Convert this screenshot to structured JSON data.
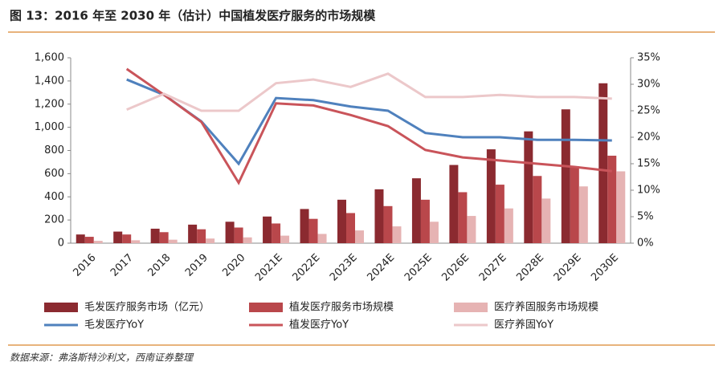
{
  "chart_data": {
    "type": "bar_line",
    "title": "图 13：2016 年至 2030 年（估计）中国植发医疗服务的市场规模",
    "source": "数据来源：弗洛斯特沙利文，西南证券整理",
    "categories": [
      "2016",
      "2017",
      "2018",
      "2019",
      "2020",
      "2021E",
      "2022E",
      "2023E",
      "2024E",
      "2025E",
      "2026E",
      "2027E",
      "2028E",
      "2029E",
      "2030E"
    ],
    "series": [
      {
        "name": "毛发医疗服务市场（亿元）",
        "type": "bar",
        "color": "#8b2a30",
        "values": [
          75,
          100,
          125,
          160,
          185,
          230,
          295,
          375,
          465,
          560,
          675,
          810,
          965,
          1155,
          1380
        ]
      },
      {
        "name": "植发医疗服务市场规模",
        "type": "bar",
        "color": "#b9474b",
        "values": [
          55,
          75,
          95,
          120,
          135,
          170,
          210,
          260,
          320,
          375,
          440,
          505,
          580,
          665,
          755
        ]
      },
      {
        "name": "医疗养固服务市场规模",
        "type": "bar",
        "color": "#e6b3b3",
        "values": [
          20,
          25,
          30,
          40,
          50,
          65,
          80,
          110,
          145,
          185,
          235,
          300,
          385,
          490,
          620
        ]
      },
      {
        "name": "毛发医疗YoY",
        "type": "line",
        "axis": "y2",
        "color": "#4f81bd",
        "values": [
          null,
          30.9,
          28,
          23,
          15,
          27.4,
          27,
          25.8,
          25,
          20.8,
          20,
          20,
          19.5,
          19.5,
          19.4
        ]
      },
      {
        "name": "植发医疗YoY",
        "type": "line",
        "axis": "y2",
        "color": "#c9545a",
        "values": [
          null,
          32.9,
          28,
          22.9,
          11.4,
          26.4,
          26,
          24.2,
          22.1,
          17.6,
          16.2,
          15.6,
          15,
          14.4,
          13.6
        ]
      },
      {
        "name": "医疗养固YoY",
        "type": "line",
        "axis": "y2",
        "color": "#ecc8ca",
        "values": [
          null,
          25.2,
          28.2,
          25,
          25,
          30.2,
          30.9,
          29.5,
          32,
          27.6,
          27.6,
          28,
          27.6,
          27.6,
          27.3
        ]
      }
    ],
    "ylim": [
      0,
      1600
    ],
    "yticks": [
      0,
      200,
      400,
      600,
      800,
      {
        "value": 1000,
        "label": "1,000"
      },
      {
        "value": 1200,
        "label": "1,200"
      },
      {
        "value": 1400,
        "label": "1,400"
      },
      {
        "value": 1600,
        "label": "1,600"
      }
    ],
    "y2lim": [
      0,
      35
    ],
    "y2ticks": [
      {
        "value": 0,
        "label": "0%"
      },
      {
        "value": 5,
        "label": "5%"
      },
      {
        "value": 10,
        "label": "10%"
      },
      {
        "value": 15,
        "label": "15%"
      },
      {
        "value": 20,
        "label": "20%"
      },
      {
        "value": 25,
        "label": "25%"
      },
      {
        "value": 30,
        "label": "30%"
      },
      {
        "value": 35,
        "label": "35%"
      }
    ]
  }
}
